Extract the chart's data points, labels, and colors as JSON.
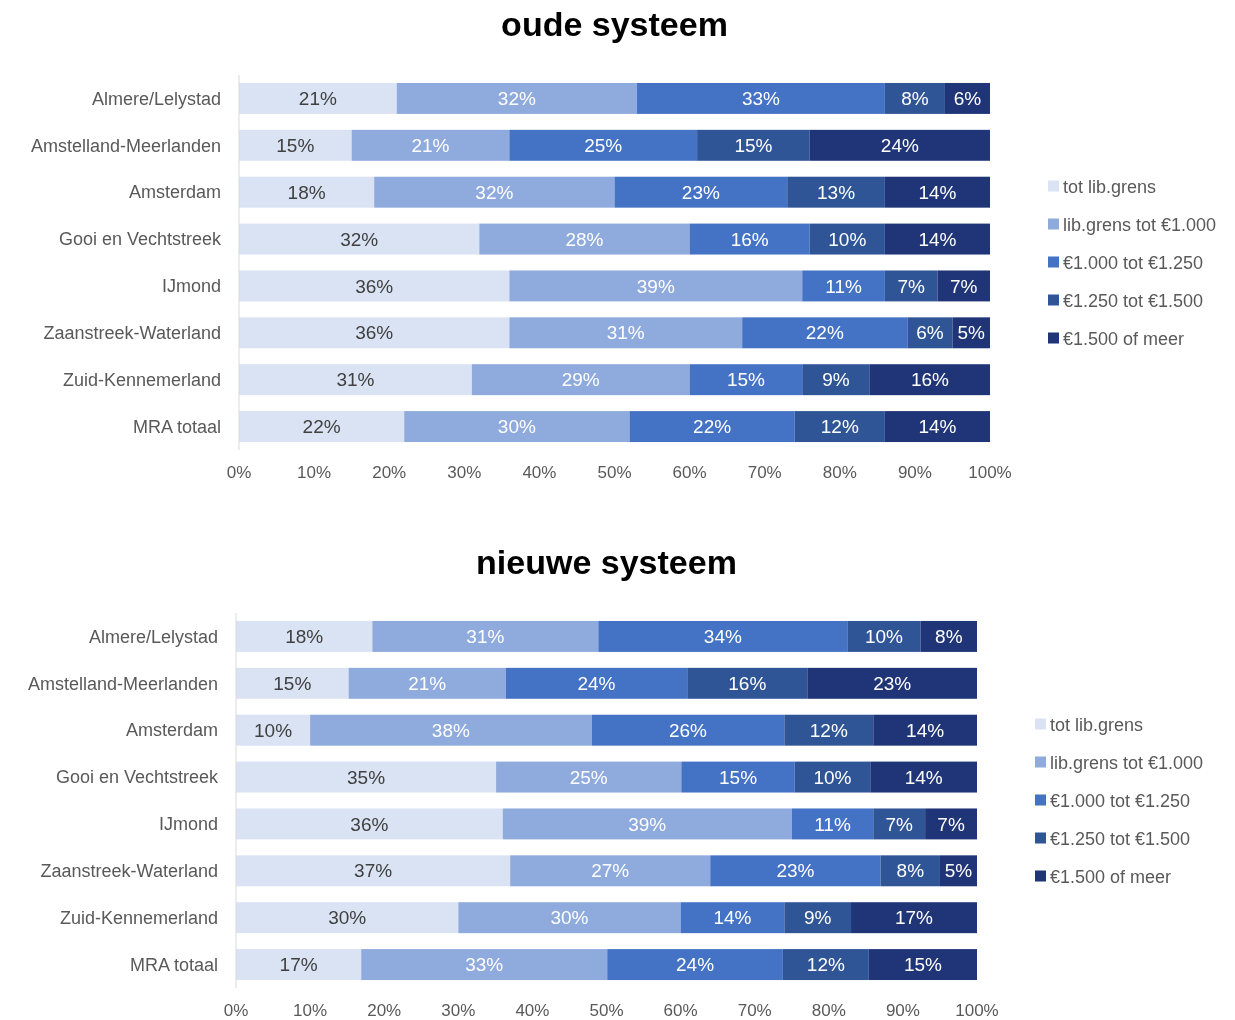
{
  "chart_data": [
    {
      "type": "bar",
      "orientation": "horizontal",
      "stacked": true,
      "title": "oude systeem",
      "categories": [
        "Almere/Lelystad",
        "Amstelland-Meerlanden",
        "Amsterdam",
        "Gooi en Vechtstreek",
        "IJmond",
        "Zaanstreek-Waterland",
        "Zuid-Kennemerland",
        "MRA totaal"
      ],
      "series": [
        {
          "name": "tot lib.grens",
          "color": "#dae3f3",
          "values": [
            21,
            15,
            18,
            32,
            36,
            36,
            31,
            22
          ],
          "value_labels": [
            "21%",
            "15%",
            "18%",
            "32%",
            "36%",
            "36%",
            "31%",
            "22%"
          ]
        },
        {
          "name": "lib.grens tot €1.000",
          "color": "#8faadc",
          "values": [
            32,
            21,
            32,
            28,
            39,
            31,
            29,
            30
          ],
          "value_labels": [
            "32%",
            "21%",
            "32%",
            "28%",
            "39%",
            "31%",
            "29%",
            "30%"
          ]
        },
        {
          "name": "€1.000 tot €1.250",
          "color": "#4472c4",
          "values": [
            33,
            25,
            23,
            16,
            11,
            22,
            15,
            22
          ],
          "value_labels": [
            "33%",
            "25%",
            "23%",
            "16%",
            "11%",
            "22%",
            "15%",
            "22%"
          ]
        },
        {
          "name": "€1.250 tot €1.500",
          "color": "#2f5597",
          "values": [
            8,
            15,
            13,
            10,
            7,
            6,
            9,
            12
          ],
          "value_labels": [
            "8%",
            "15%",
            "13%",
            "10%",
            "7%",
            "6%",
            "9%",
            "12%"
          ]
        },
        {
          "name": "€1.500 of meer",
          "color": "#1f3577",
          "values": [
            6,
            24,
            14,
            14,
            7,
            5,
            16,
            14
          ],
          "value_labels": [
            "6%",
            "24%",
            "14%",
            "14%",
            "7%",
            "5%",
            "16%",
            "14%"
          ]
        }
      ],
      "xlim": [
        0,
        100
      ],
      "xticks": [
        {
          "value": 0,
          "label": "0%"
        },
        {
          "value": 10,
          "label": "10%"
        },
        {
          "value": 20,
          "label": "20%"
        },
        {
          "value": 30,
          "label": "30%"
        },
        {
          "value": 40,
          "label": "40%"
        },
        {
          "value": 50,
          "label": "50%"
        },
        {
          "value": 60,
          "label": "60%"
        },
        {
          "value": 70,
          "label": "70%"
        },
        {
          "value": 80,
          "label": "80%"
        },
        {
          "value": 90,
          "label": "90%"
        },
        {
          "value": 100,
          "label": "100%"
        }
      ],
      "legend": "right",
      "grid": false
    },
    {
      "type": "bar",
      "orientation": "horizontal",
      "stacked": true,
      "title": "nieuwe systeem",
      "categories": [
        "Almere/Lelystad",
        "Amstelland-Meerlanden",
        "Amsterdam",
        "Gooi en Vechtstreek",
        "IJmond",
        "Zaanstreek-Waterland",
        "Zuid-Kennemerland",
        "MRA totaal"
      ],
      "series": [
        {
          "name": "tot lib.grens",
          "color": "#dae3f3",
          "values": [
            18.4,
            15.2,
            10,
            35.1,
            36,
            37,
            30,
            16.9
          ],
          "value_labels": [
            "18%",
            "15%",
            "10%",
            "35%",
            "36%",
            "37%",
            "30%",
            "17%"
          ]
        },
        {
          "name": "lib.grens tot €1.000",
          "color": "#8faadc",
          "values": [
            30.5,
            21.2,
            38,
            25,
            39,
            27,
            30,
            33.2
          ],
          "value_labels": [
            "31%",
            "21%",
            "38%",
            "25%",
            "39%",
            "27%",
            "30%",
            "33%"
          ]
        },
        {
          "name": "€1.000 tot €1.250",
          "color": "#4472c4",
          "values": [
            33.6,
            24.5,
            26,
            15.3,
            11,
            23,
            14,
            23.7
          ],
          "value_labels": [
            "34%",
            "24%",
            "26%",
            "15%",
            "11%",
            "23%",
            "14%",
            "24%"
          ]
        },
        {
          "name": "€1.250 tot €1.500",
          "color": "#2f5597",
          "values": [
            9.9,
            16.2,
            12,
            10.2,
            7,
            8,
            9,
            11.6
          ],
          "value_labels": [
            "10%",
            "16%",
            "12%",
            "10%",
            "7%",
            "8%",
            "9%",
            "12%"
          ]
        },
        {
          "name": "€1.500 of meer",
          "color": "#1f3577",
          "values": [
            7.6,
            22.9,
            14,
            14.4,
            7,
            5,
            17,
            14.6
          ],
          "value_labels": [
            "8%",
            "23%",
            "14%",
            "14%",
            "7%",
            "5%",
            "17%",
            "15%"
          ]
        }
      ],
      "xlim": [
        0,
        100
      ],
      "xticks": [
        {
          "value": 0,
          "label": "0%"
        },
        {
          "value": 10,
          "label": "10%"
        },
        {
          "value": 20,
          "label": "20%"
        },
        {
          "value": 30,
          "label": "30%"
        },
        {
          "value": 40,
          "label": "40%"
        },
        {
          "value": 50,
          "label": "50%"
        },
        {
          "value": 60,
          "label": "60%"
        },
        {
          "value": 70,
          "label": "70%"
        },
        {
          "value": 80,
          "label": "80%"
        },
        {
          "value": 90,
          "label": "90%"
        },
        {
          "value": 100,
          "label": "100%"
        }
      ],
      "legend": "right",
      "grid": false
    }
  ]
}
